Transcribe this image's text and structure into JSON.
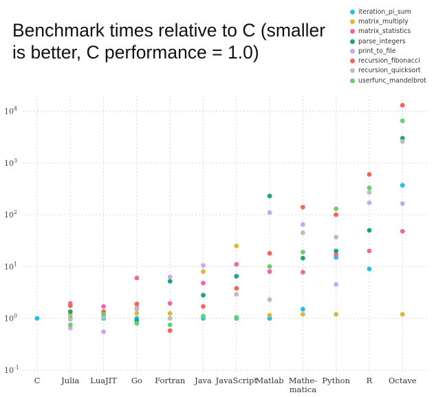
{
  "chart_data": {
    "type": "scatter",
    "title_lines": [
      "Benchmark times relative to C (smaller",
      "is better, C performance = 1.0)"
    ],
    "y_scale": "log10",
    "ylim": [
      0.1,
      20000
    ],
    "y_ticks": [
      {
        "value": 0.1,
        "exp": "-1"
      },
      {
        "value": 1,
        "exp": "0"
      },
      {
        "value": 10,
        "exp": "1"
      },
      {
        "value": 100,
        "exp": "2"
      },
      {
        "value": 1000,
        "exp": "3"
      },
      {
        "value": 10000,
        "exp": "4"
      }
    ],
    "y_tick_base": "10",
    "categories": [
      {
        "label": "C"
      },
      {
        "label": "Julia"
      },
      {
        "label": "LuaJIT"
      },
      {
        "label": "Go"
      },
      {
        "label": "Fortran"
      },
      {
        "label": "Java"
      },
      {
        "label": "JavaScript"
      },
      {
        "label": "Matlab"
      },
      {
        "label": "Mathe-",
        "label2": "matica"
      },
      {
        "label": "Python"
      },
      {
        "label": "R"
      },
      {
        "label": "Octave"
      }
    ],
    "grid": true,
    "legend_position": "top-right",
    "series": [
      {
        "name": "iteration_pi_sum",
        "color": "#1fbfe8",
        "values": [
          1.0,
          1.0,
          1.0,
          1.0,
          1.0,
          1.0,
          1.0,
          1.0,
          1.5,
          15,
          9,
          370
        ]
      },
      {
        "name": "matrix_multiply",
        "color": "#d8b93a",
        "values": [
          null,
          1.2,
          1.1,
          1.25,
          1.25,
          8,
          25,
          1.15,
          1.2,
          1.2,
          null,
          1.2
        ]
      },
      {
        "name": "matrix_statistics",
        "color": "#ee66a8",
        "values": [
          null,
          1.95,
          1.7,
          6,
          1.95,
          4.8,
          11,
          8,
          7.8,
          17,
          20,
          48
        ]
      },
      {
        "name": "parse_integers",
        "color": "#1aa67a",
        "values": [
          null,
          1.35,
          1.2,
          0.9,
          5.2,
          2.8,
          6.5,
          230,
          14.5,
          20,
          50,
          3000
        ]
      },
      {
        "name": "print_to_file",
        "color": "#c9a6f2",
        "values": [
          null,
          0.65,
          0.55,
          1.6,
          6.3,
          10.5,
          null,
          110,
          65,
          4.5,
          170,
          165
        ]
      },
      {
        "name": "recursion_fibonacci",
        "color": "#f4645a",
        "values": [
          null,
          1.75,
          1.35,
          1.9,
          0.58,
          1.7,
          3.8,
          18,
          140,
          100,
          600,
          13000
        ]
      },
      {
        "name": "recursion_quicksort",
        "color": "#bdbdbd",
        "values": [
          null,
          0.95,
          1.05,
          1.5,
          1.0,
          1.1,
          2.9,
          2.3,
          45,
          37,
          270,
          2600
        ]
      },
      {
        "name": "userfunc_mandelbrot",
        "color": "#63d369",
        "values": [
          null,
          0.75,
          1.2,
          0.8,
          0.75,
          1.1,
          1.05,
          10,
          19,
          130,
          330,
          6500
        ]
      }
    ]
  }
}
